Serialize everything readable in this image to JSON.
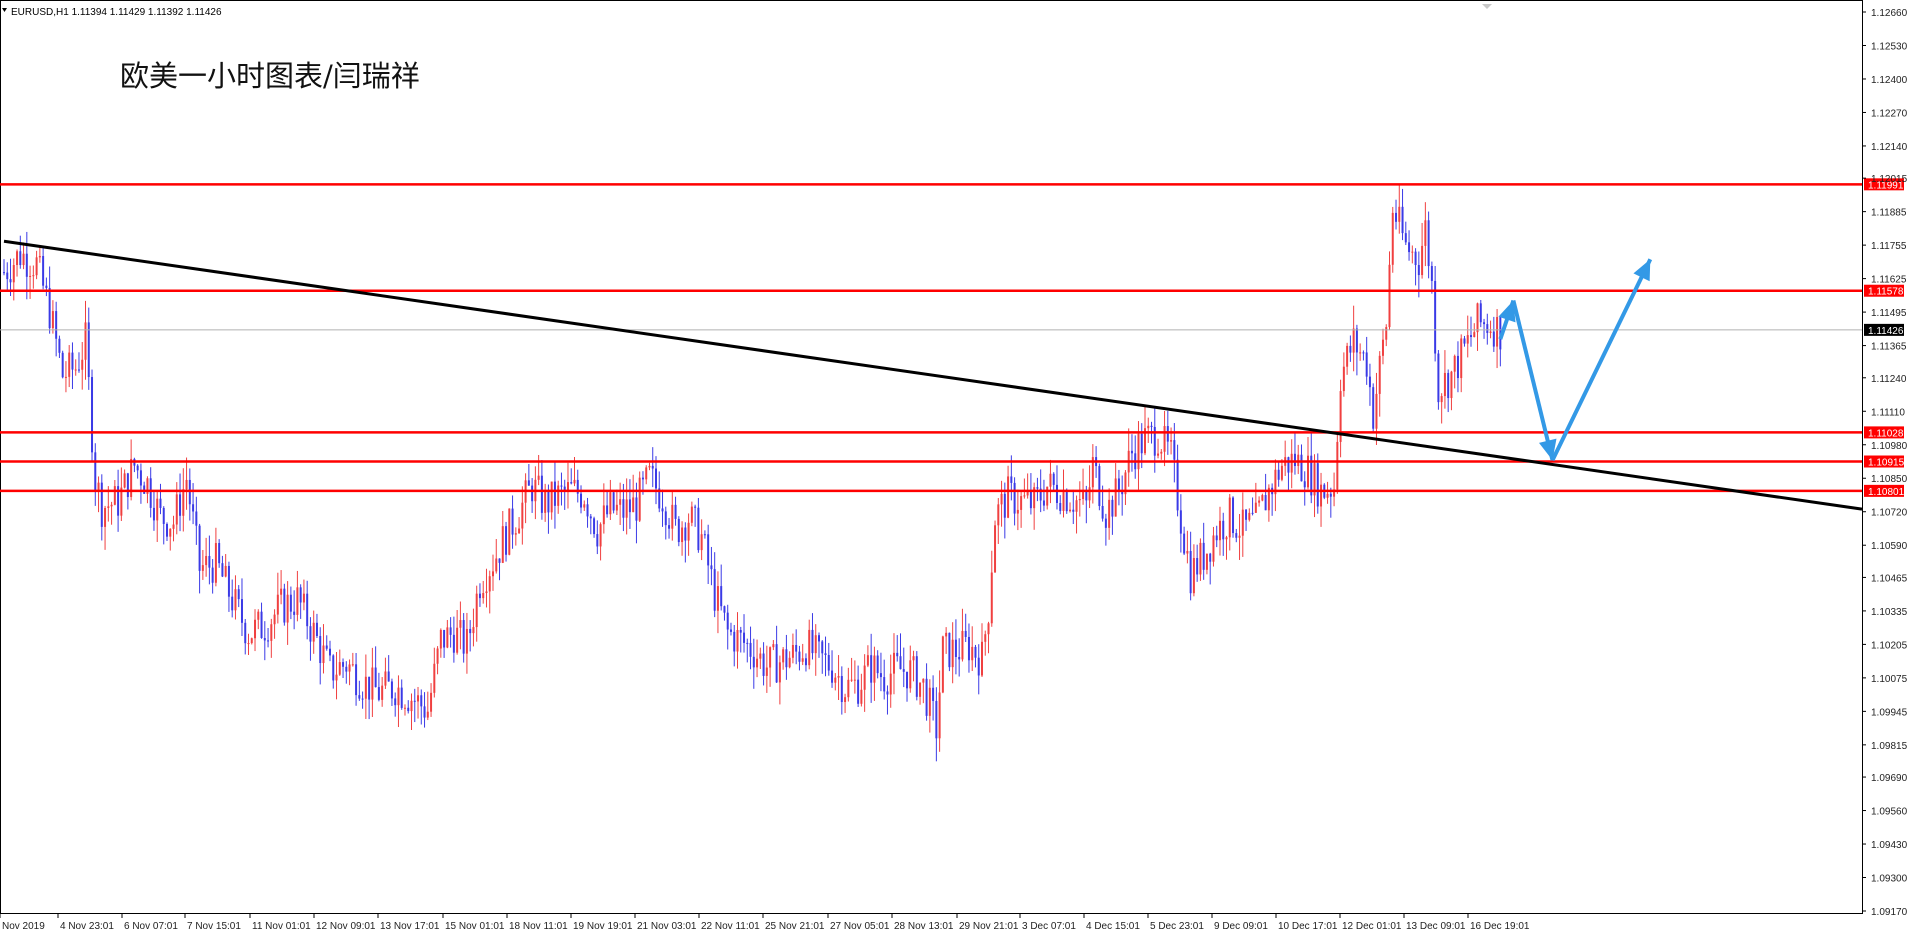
{
  "symbol_info": "EURUSD,H1  1.11394 1.11429 1.11392 1.11426",
  "title": "欧美一小时图表/闫瑞祥",
  "colors": {
    "up_candle": "#f04040",
    "down_candle": "#3a3ae6",
    "level_line": "#ff0000",
    "trendline": "#000000",
    "arrow": "#3399e6",
    "current_price_tag": "#000000"
  },
  "chart_data": {
    "type": "candlestick",
    "title": "欧美一小时图表/闫瑞祥",
    "symbol": "EURUSD",
    "timeframe": "H1",
    "ohlc_header": {
      "open": 1.11394,
      "high": 1.11429,
      "low": 1.11392,
      "close": 1.11426
    },
    "ylim": [
      1.0917,
      1.1266
    ],
    "y_ticks": [
      "1.12660",
      "1.12530",
      "1.12400",
      "1.12270",
      "1.12140",
      "1.12015",
      "1.11885",
      "1.11755",
      "1.11625",
      "1.11495",
      "1.11365",
      "1.11240",
      "1.11110",
      "1.10980",
      "1.10850",
      "1.10720",
      "1.10590",
      "1.10465",
      "1.10335",
      "1.10205",
      "1.10075",
      "1.09945",
      "1.09815",
      "1.09690",
      "1.09560",
      "1.09430",
      "1.09300",
      "1.09170"
    ],
    "x_labels": [
      "Nov 2019",
      "4 Nov 23:01",
      "6 Nov 07:01",
      "7 Nov 15:01",
      "11 Nov 01:01",
      "12 Nov 09:01",
      "13 Nov 17:01",
      "15 Nov 01:01",
      "18 Nov 11:01",
      "19 Nov 19:01",
      "21 Nov 03:01",
      "22 Nov 11:01",
      "25 Nov 21:01",
      "27 Nov 05:01",
      "28 Nov 13:01",
      "29 Nov 21:01",
      "3 Dec 07:01",
      "4 Dec 15:01",
      "5 Dec 23:01",
      "9 Dec 09:01",
      "10 Dec 17:01",
      "12 Dec 01:01",
      "13 Dec 09:01",
      "16 Dec 19:01"
    ],
    "horizontal_levels": [
      {
        "label": "1.11991",
        "value": 1.11991
      },
      {
        "label": "1.11578",
        "value": 1.11578
      },
      {
        "label": "1.11028",
        "value": 1.11028
      },
      {
        "label": "1.10915",
        "value": 1.10915
      },
      {
        "label": "1.10801",
        "value": 1.10801
      }
    ],
    "current_price": {
      "label": "1.11426",
      "value": 1.11426
    },
    "trendline": {
      "from": {
        "index": 0,
        "price": 1.1177
      },
      "to": {
        "index": 572,
        "price": 1.1073
      }
    },
    "projection_path": [
      {
        "index": 459,
        "price": 1.1139
      },
      {
        "index": 463,
        "price": 1.1154
      },
      {
        "index": 475,
        "price": 1.1092
      },
      {
        "index": 505,
        "price": 1.117
      }
    ],
    "price_path": [
      [
        0,
        1.1165
      ],
      [
        5,
        1.1172
      ],
      [
        10,
        1.1168
      ],
      [
        14,
        1.115
      ],
      [
        18,
        1.1125
      ],
      [
        22,
        1.1128
      ],
      [
        25,
        1.1138
      ],
      [
        28,
        1.1085
      ],
      [
        30,
        1.1074
      ],
      [
        35,
        1.1076
      ],
      [
        40,
        1.109
      ],
      [
        44,
        1.1083
      ],
      [
        48,
        1.107
      ],
      [
        52,
        1.1068
      ],
      [
        56,
        1.1085
      ],
      [
        60,
        1.105
      ],
      [
        65,
        1.1052
      ],
      [
        70,
        1.1038
      ],
      [
        75,
        1.1025
      ],
      [
        80,
        1.1028
      ],
      [
        85,
        1.1035
      ],
      [
        90,
        1.1038
      ],
      [
        95,
        1.1025
      ],
      [
        100,
        1.101
      ],
      [
        105,
        1.1013
      ],
      [
        110,
        1.1006
      ],
      [
        115,
        1.1002
      ],
      [
        120,
        1.1004
      ],
      [
        125,
        1.1
      ],
      [
        130,
        1.0995
      ],
      [
        134,
        1.1022
      ],
      [
        138,
        1.1025
      ],
      [
        142,
        1.102
      ],
      [
        146,
        1.1045
      ],
      [
        150,
        1.1053
      ],
      [
        154,
        1.1063
      ],
      [
        158,
        1.1072
      ],
      [
        162,
        1.1082
      ],
      [
        166,
        1.1075
      ],
      [
        170,
        1.1078
      ],
      [
        174,
        1.108
      ],
      [
        178,
        1.1079
      ],
      [
        182,
        1.1065
      ],
      [
        186,
        1.1073
      ],
      [
        190,
        1.1072
      ],
      [
        194,
        1.1075
      ],
      [
        198,
        1.1085
      ],
      [
        202,
        1.1078
      ],
      [
        206,
        1.1065
      ],
      [
        210,
        1.107
      ],
      [
        214,
        1.1062
      ],
      [
        218,
        1.104
      ],
      [
        222,
        1.1025
      ],
      [
        226,
        1.1022
      ],
      [
        230,
        1.1018
      ],
      [
        234,
        1.1012
      ],
      [
        238,
        1.1014
      ],
      [
        242,
        1.1016
      ],
      [
        246,
        1.102
      ],
      [
        250,
        1.1015
      ],
      [
        254,
        1.1012
      ],
      [
        258,
        1.1004
      ],
      [
        262,
        1.1005
      ],
      [
        266,
        1.1012
      ],
      [
        270,
        1.1008
      ],
      [
        274,
        1.1011
      ],
      [
        278,
        1.101
      ],
      [
        282,
        1.1004
      ],
      [
        286,
        1.0988
      ],
      [
        288,
        1.1018
      ],
      [
        292,
        1.1018
      ],
      [
        296,
        1.102
      ],
      [
        300,
        1.1015
      ],
      [
        302,
        1.1035
      ],
      [
        304,
        1.107
      ],
      [
        308,
        1.1078
      ],
      [
        312,
        1.1076
      ],
      [
        316,
        1.1075
      ],
      [
        320,
        1.1082
      ],
      [
        324,
        1.108
      ],
      [
        328,
        1.1077
      ],
      [
        332,
        1.1074
      ],
      [
        334,
        1.109
      ],
      [
        338,
        1.1072
      ],
      [
        342,
        1.108
      ],
      [
        346,
        1.1095
      ],
      [
        350,
        1.11
      ],
      [
        354,
        1.1102
      ],
      [
        358,
        1.1093
      ],
      [
        362,
        1.1062
      ],
      [
        364,
        1.1048
      ],
      [
        368,
        1.1055
      ],
      [
        372,
        1.1065
      ],
      [
        376,
        1.107
      ],
      [
        380,
        1.1065
      ],
      [
        384,
        1.1068
      ],
      [
        388,
        1.108
      ],
      [
        392,
        1.109
      ],
      [
        396,
        1.1092
      ],
      [
        400,
        1.1088
      ],
      [
        404,
        1.108
      ],
      [
        408,
        1.1082
      ],
      [
        410,
        1.1125
      ],
      [
        414,
        1.1138
      ],
      [
        418,
        1.113
      ],
      [
        420,
        1.111
      ],
      [
        422,
        1.1128
      ],
      [
        424,
        1.1145
      ],
      [
        426,
        1.119
      ],
      [
        430,
        1.1175
      ],
      [
        434,
        1.117
      ],
      [
        436,
        1.1182
      ],
      [
        438,
        1.116
      ],
      [
        440,
        1.112
      ],
      [
        444,
        1.1125
      ],
      [
        448,
        1.1135
      ],
      [
        452,
        1.1145
      ],
      [
        456,
        1.1145
      ],
      [
        459,
        1.1142
      ]
    ]
  }
}
